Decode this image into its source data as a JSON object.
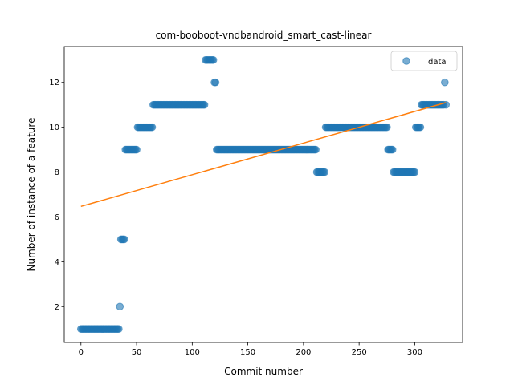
{
  "chart_data": {
    "type": "scatter",
    "title": "com-booboot-vndbandroid_smart_cast-linear",
    "xlabel": "Commit number",
    "ylabel": "Number of instance of a feature",
    "xlim": [
      -15,
      343
    ],
    "ylim": [
      0.4,
      13.6
    ],
    "xticks": [
      0,
      50,
      100,
      150,
      200,
      250,
      300
    ],
    "yticks": [
      2,
      4,
      6,
      8,
      10,
      12
    ],
    "legend": {
      "position": "top-right",
      "entries": [
        "data"
      ]
    },
    "colors": {
      "data": "#1f77b4",
      "fit": "#ff7f0e"
    },
    "series": [
      {
        "name": "data",
        "kind": "scatter",
        "segments": [
          {
            "x_from": 0,
            "x_to": 34,
            "y": 1
          },
          {
            "x_from": 35,
            "x_to": 35,
            "y": 2
          },
          {
            "x_from": 36,
            "x_to": 39,
            "y": 5
          },
          {
            "x_from": 40,
            "x_to": 50,
            "y": 9
          },
          {
            "x_from": 51,
            "x_to": 64,
            "y": 10
          },
          {
            "x_from": 65,
            "x_to": 111,
            "y": 11
          },
          {
            "x_from": 112,
            "x_to": 119,
            "y": 13
          },
          {
            "x_from": 120,
            "x_to": 121,
            "y": 12
          },
          {
            "x_from": 122,
            "x_to": 211,
            "y": 9
          },
          {
            "x_from": 212,
            "x_to": 219,
            "y": 8
          },
          {
            "x_from": 220,
            "x_to": 275,
            "y": 10
          },
          {
            "x_from": 276,
            "x_to": 280,
            "y": 9
          },
          {
            "x_from": 281,
            "x_to": 300,
            "y": 8
          },
          {
            "x_from": 301,
            "x_to": 305,
            "y": 10
          },
          {
            "x_from": 306,
            "x_to": 326,
            "y": 11
          },
          {
            "x_from": 327,
            "x_to": 327,
            "y": 12
          },
          {
            "x_from": 328,
            "x_to": 328,
            "y": 11
          }
        ]
      },
      {
        "name": "",
        "kind": "line",
        "x": [
          0,
          328
        ],
        "y": [
          6.47,
          11.1
        ]
      }
    ]
  }
}
